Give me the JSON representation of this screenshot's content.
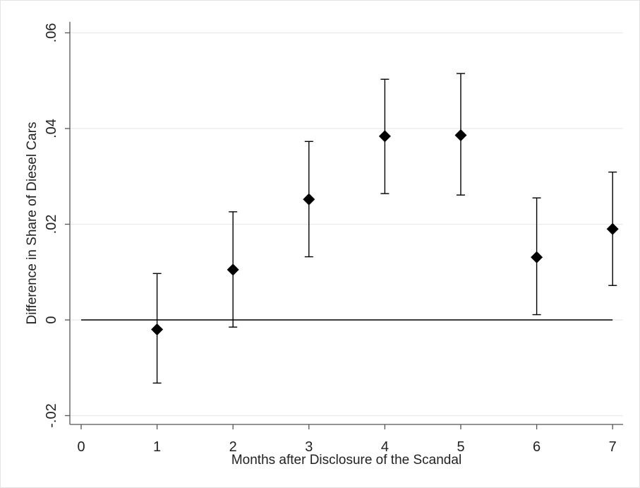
{
  "chart_data": {
    "type": "scatter",
    "title": "",
    "xlabel": "Months after Disclosure of the Scandal",
    "ylabel": "Difference in Share of Diesel Cars",
    "xlim": [
      0,
      7
    ],
    "ylim": [
      -0.02,
      0.06
    ],
    "x_ticks": [
      {
        "value": 0,
        "label": "0"
      },
      {
        "value": 1,
        "label": "1"
      },
      {
        "value": 2,
        "label": "2"
      },
      {
        "value": 3,
        "label": "3"
      },
      {
        "value": 4,
        "label": "4"
      },
      {
        "value": 5,
        "label": "5"
      },
      {
        "value": 6,
        "label": "6"
      },
      {
        "value": 7,
        "label": "7"
      }
    ],
    "y_ticks": [
      {
        "value": -0.02,
        "label": "-.02"
      },
      {
        "value": 0,
        "label": "0"
      },
      {
        "value": 0.02,
        "label": ".02"
      },
      {
        "value": 0.04,
        "label": ".04"
      },
      {
        "value": 0.06,
        "label": ".06"
      }
    ],
    "grid": true,
    "reference_line": 0,
    "marker": "diamond",
    "points": [
      {
        "x": 1,
        "y": -0.002,
        "lower": -0.0132,
        "upper": 0.0097
      },
      {
        "x": 2,
        "y": 0.0105,
        "lower": -0.0015,
        "upper": 0.0226
      },
      {
        "x": 3,
        "y": 0.0252,
        "lower": 0.0132,
        "upper": 0.0373
      },
      {
        "x": 4,
        "y": 0.0384,
        "lower": 0.0264,
        "upper": 0.0503
      },
      {
        "x": 5,
        "y": 0.0386,
        "lower": 0.0261,
        "upper": 0.0515
      },
      {
        "x": 6,
        "y": 0.0131,
        "lower": 0.0011,
        "upper": 0.0255
      },
      {
        "x": 7,
        "y": 0.019,
        "lower": 0.0072,
        "upper": 0.0309
      }
    ],
    "colors": {
      "marker": "#000000",
      "grid": "#eaeaea",
      "axis": "#555555",
      "reference": "#000000"
    }
  }
}
